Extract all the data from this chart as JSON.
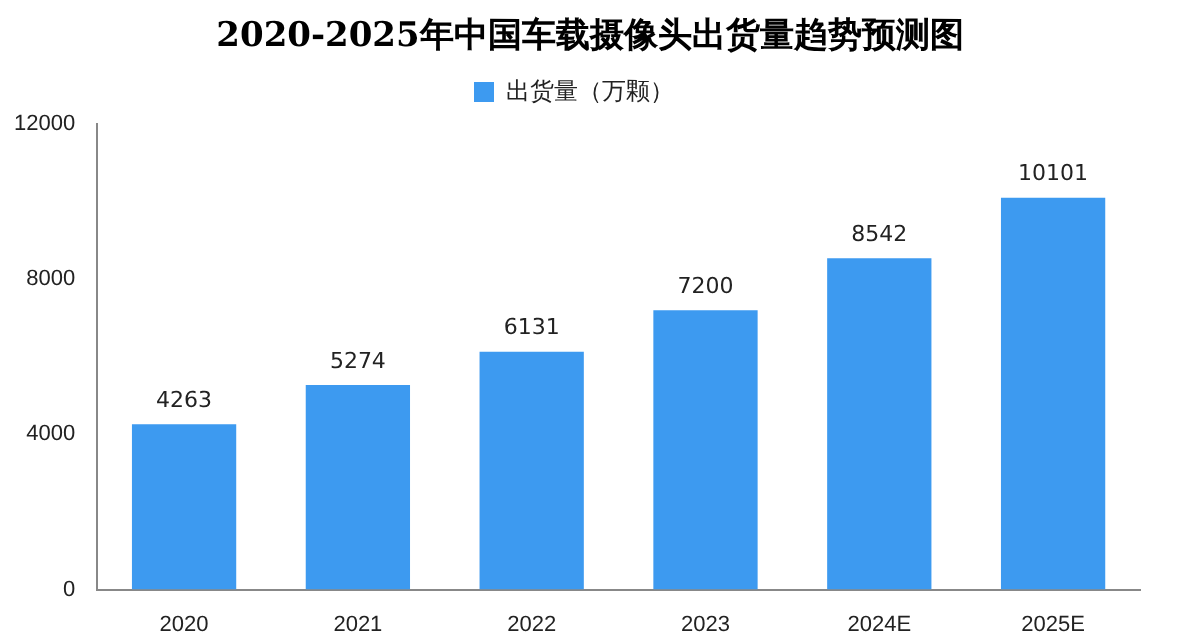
{
  "chart_data": {
    "type": "bar",
    "title": "2020-2025年中国车载摄像头出货量趋势预测图",
    "categories": [
      "2020",
      "2021",
      "2022",
      "2023",
      "2024E",
      "2025E"
    ],
    "series": [
      {
        "name": "出货量（万颗）",
        "color": "#3d9af0",
        "values": [
          4263,
          5274,
          6131,
          7200,
          8542,
          10101
        ]
      }
    ],
    "ylim": [
      0,
      12000
    ],
    "yticks": [
      0,
      4000,
      8000,
      12000
    ],
    "grid": false,
    "legend": "top",
    "data_labels": true
  }
}
